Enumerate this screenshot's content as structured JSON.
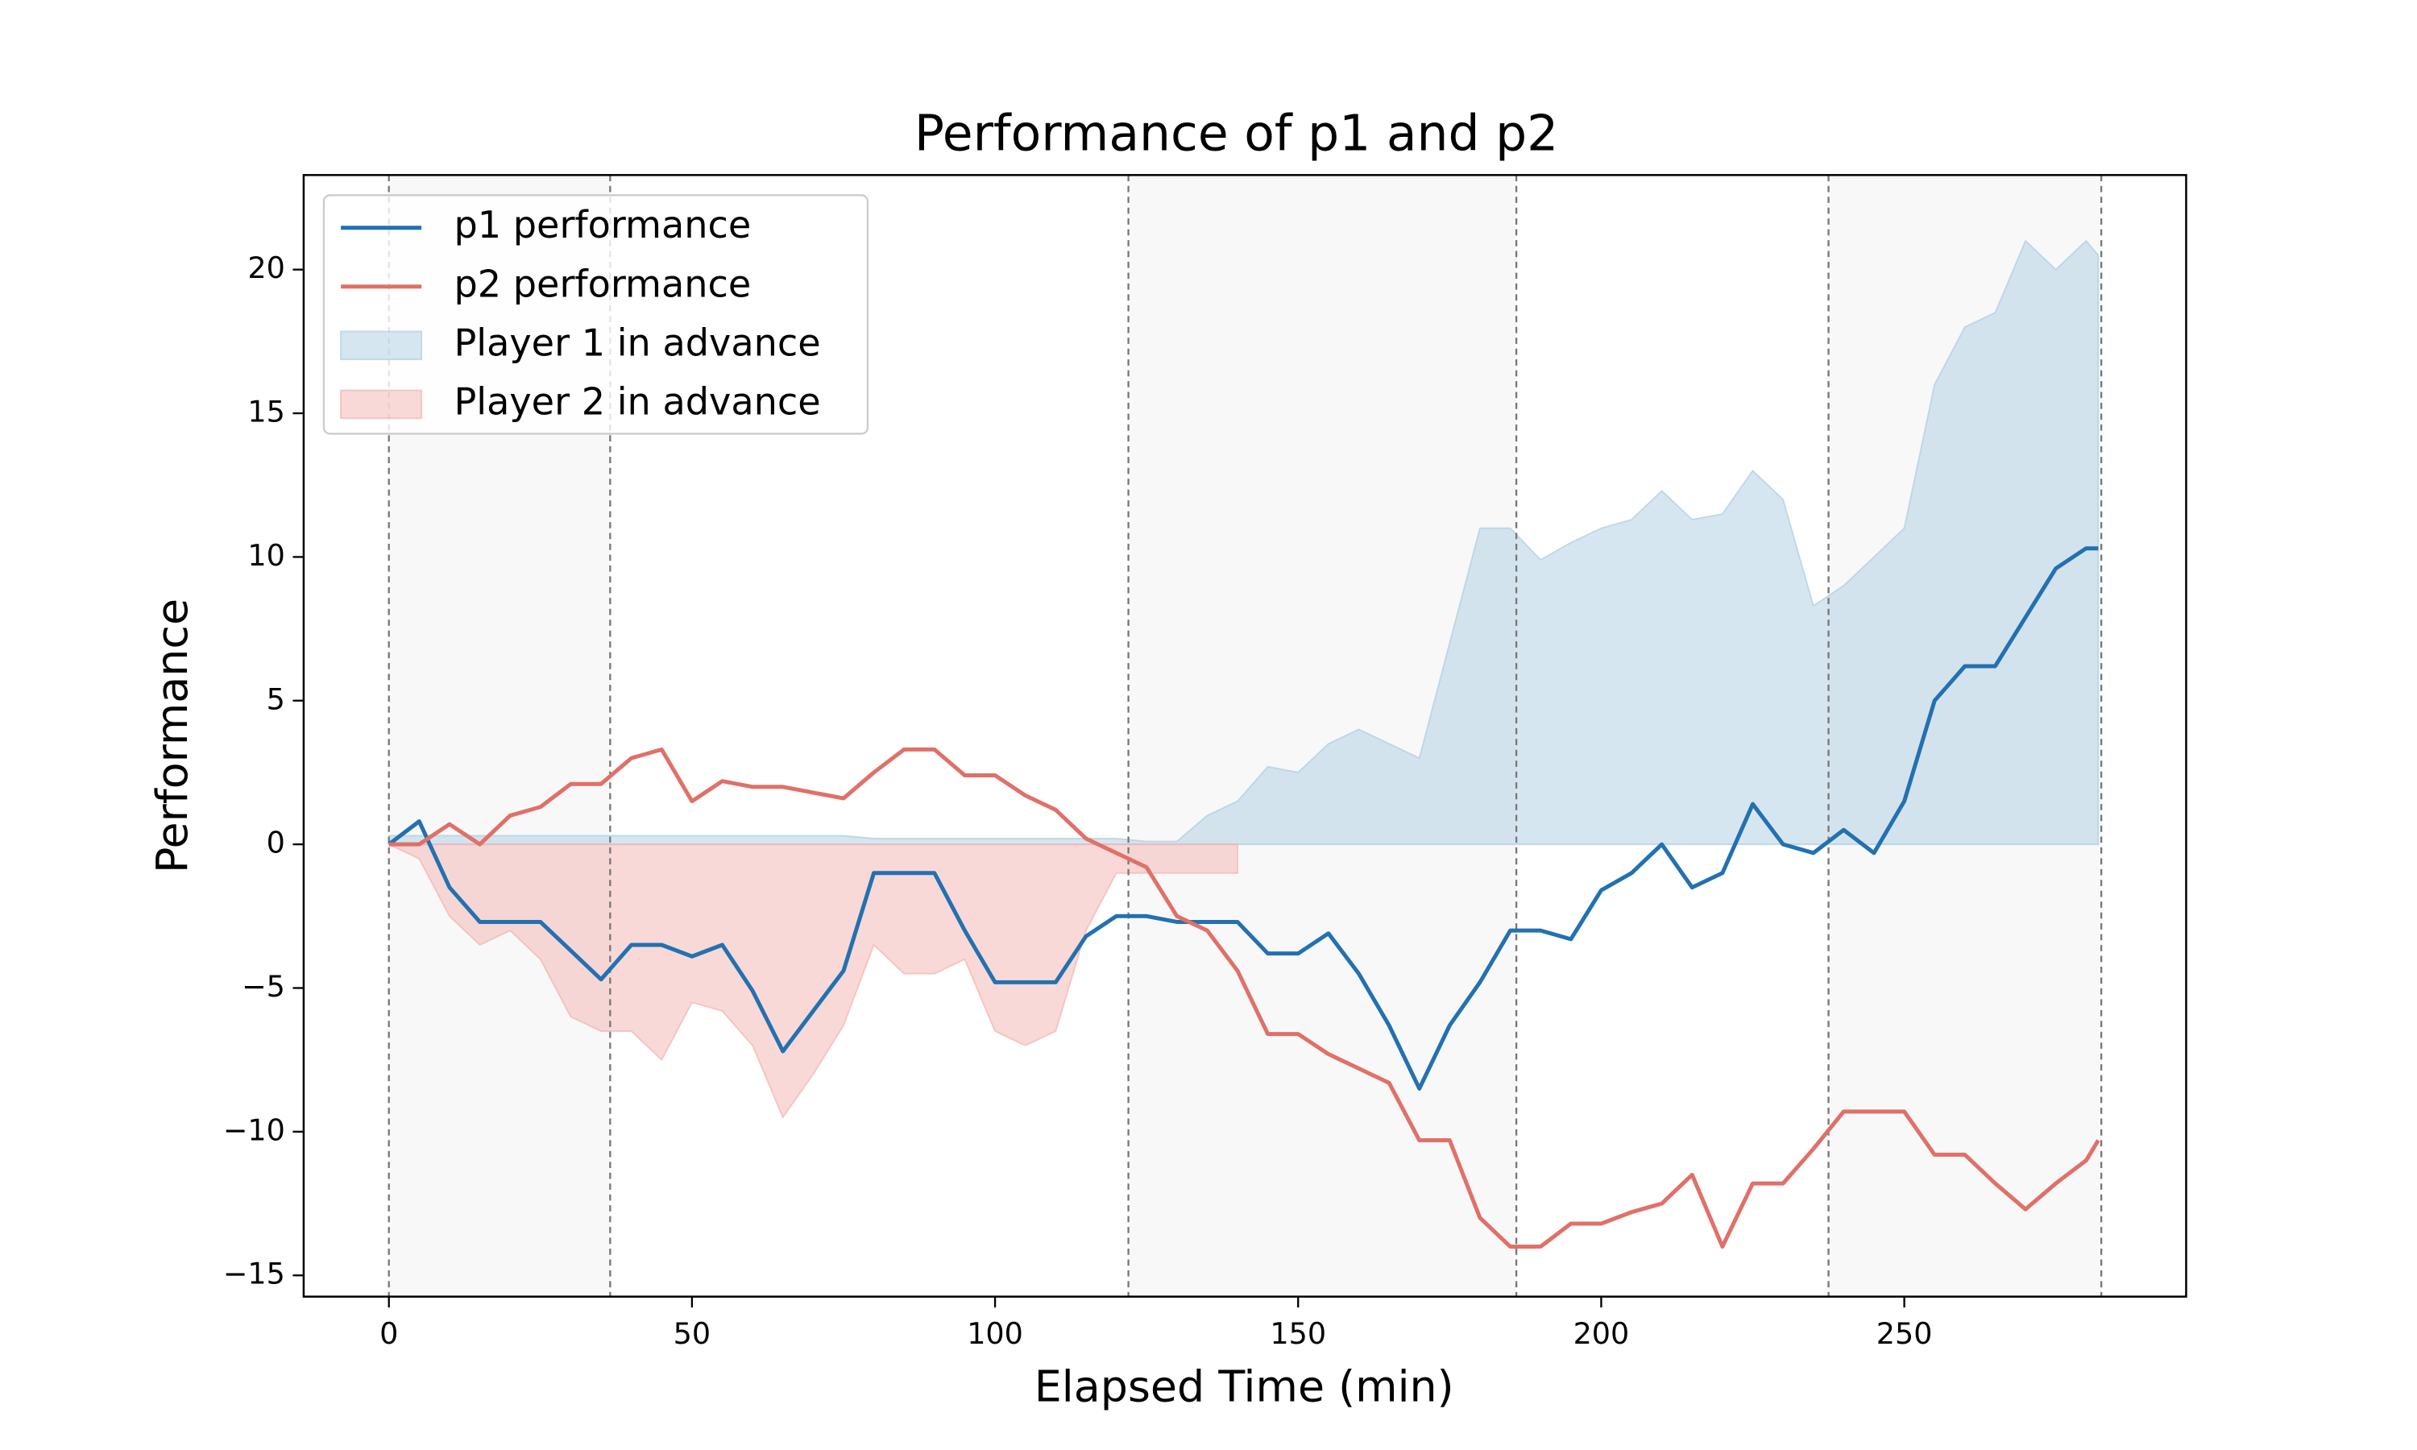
{
  "chart_data": {
    "type": "line",
    "title": "Performance of p1 and p2",
    "x_label": "Elapsed Time (min)",
    "y_label": "Performance",
    "x": [
      0,
      5,
      10,
      15,
      20,
      25,
      30,
      35,
      40,
      45,
      50,
      55,
      60,
      65,
      70,
      75,
      80,
      85,
      90,
      95,
      100,
      105,
      110,
      115,
      120,
      125,
      130,
      135,
      140,
      145,
      150,
      155,
      160,
      165,
      170,
      175,
      180,
      185,
      190,
      195,
      200,
      205,
      210,
      215,
      220,
      225,
      230,
      235,
      240,
      245,
      250,
      255,
      260,
      265,
      270,
      275,
      280,
      282
    ],
    "series": [
      {
        "name": "p1 performance",
        "kind": "line",
        "color": "#2271b1",
        "values": [
          0,
          0.8,
          -1.5,
          -2.7,
          -2.7,
          -2.7,
          -3.7,
          -4.7,
          -3.5,
          -3.5,
          -3.9,
          -3.5,
          -5.1,
          -7.2,
          -5.8,
          -4.4,
          -1,
          -1,
          -1,
          -3,
          -4.8,
          -4.8,
          -4.8,
          -3.2,
          -2.5,
          -2.5,
          -2.7,
          -2.7,
          -2.7,
          -3.8,
          -3.8,
          -3.1,
          -4.5,
          -6.3,
          -8.5,
          -6.3,
          -4.8,
          -3,
          -3,
          -3.3,
          -1.6,
          -1,
          0,
          -1.5,
          -1,
          1.4,
          0,
          -0.3,
          0.5,
          -0.3,
          1.5,
          5,
          6.2,
          6.2,
          7.9,
          9.6,
          10.3,
          10.3
        ]
      },
      {
        "name": "p2 performance",
        "kind": "line",
        "color": "#e07068",
        "values": [
          0,
          0,
          0.7,
          0,
          1,
          1.3,
          2.1,
          2.1,
          3,
          3.3,
          1.5,
          2.2,
          2,
          2,
          1.8,
          1.6,
          2.5,
          3.3,
          3.3,
          2.4,
          2.4,
          1.7,
          1.2,
          0.2,
          -0.3,
          -0.8,
          -2.5,
          -3,
          -4.4,
          -6.6,
          -6.6,
          -7.3,
          -7.8,
          -8.3,
          -10.3,
          -10.3,
          -13,
          -14,
          -14,
          -13.2,
          -13.2,
          -12.8,
          -12.5,
          -11.5,
          -14,
          -11.8,
          -11.8,
          -10.6,
          -9.3,
          -9.3,
          -9.3,
          -10.8,
          -10.8,
          -11.8,
          -12.7,
          -11.8,
          -11,
          -10.3
        ]
      },
      {
        "name": "Player 1 in advance",
        "kind": "area",
        "color": "#aecde2",
        "values": [
          0.3,
          0.3,
          0.3,
          0.3,
          0.3,
          0.3,
          0.3,
          0.3,
          0.3,
          0.3,
          0.3,
          0.3,
          0.3,
          0.3,
          0.3,
          0.3,
          0.2,
          0.2,
          0.2,
          0.2,
          0.2,
          0.2,
          0.2,
          0.2,
          0.2,
          0.1,
          0.1,
          1,
          1.5,
          2.7,
          2.5,
          3.5,
          4,
          3.5,
          3,
          7,
          11,
          11,
          9.9,
          10.5,
          11,
          11.3,
          12.3,
          11.3,
          11.5,
          13,
          12,
          8.3,
          9,
          10,
          11,
          16,
          18,
          18.5,
          21,
          20,
          21,
          20.5
        ]
      },
      {
        "name": "Player 2 in advance",
        "kind": "area",
        "color": "#f2b4b0",
        "values": [
          0,
          -0.5,
          -2.5,
          -3.5,
          -3,
          -4,
          -6,
          -6.5,
          -6.5,
          -7.5,
          -5.5,
          -5.8,
          -7,
          -9.5,
          -8,
          -6.3,
          -3.5,
          -4.5,
          -4.5,
          -4,
          -6.5,
          -7,
          -6.5,
          -3,
          -1,
          -1,
          -1,
          -1,
          -1,
          null,
          null,
          null,
          null,
          null,
          null,
          null,
          null,
          null,
          null,
          null,
          null,
          null,
          null,
          null,
          null,
          null,
          null,
          null,
          null,
          null,
          null,
          null,
          null,
          null,
          null,
          null,
          null,
          null
        ]
      }
    ],
    "xlim": [
      -14.06,
      296.5
    ],
    "ylim": [
      -15.74,
      23.29
    ],
    "xticks": [
      0,
      50,
      100,
      150,
      200,
      250
    ],
    "yticks": [
      {
        "value": -15,
        "label": "−15"
      },
      {
        "value": -10,
        "label": "−10"
      },
      {
        "value": -5,
        "label": "−5"
      },
      0,
      5,
      10,
      15,
      20
    ],
    "vlines": [
      0,
      36.5,
      122,
      186,
      237.5,
      282.5
    ],
    "shaded_spans": [
      [
        0,
        36.5
      ],
      [
        122,
        186
      ],
      [
        237.5,
        282.5
      ]
    ],
    "legend": "upper left",
    "grid": false
  }
}
